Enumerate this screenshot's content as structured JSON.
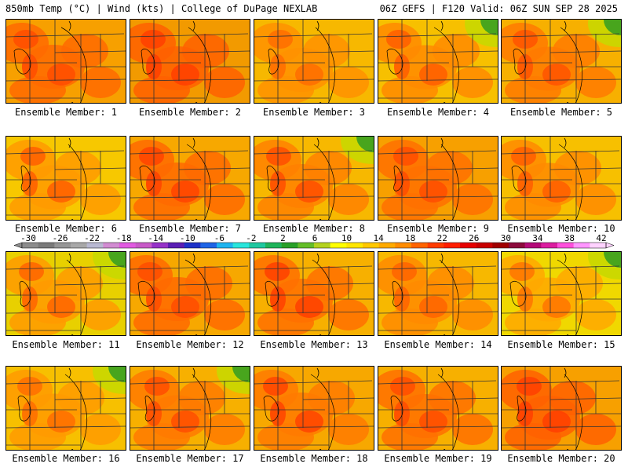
{
  "header": {
    "left": "850mb Temp (°C) | Wind (kts) | College of DuPage NEXLAB",
    "right": "06Z GEFS | F120 Valid: 06Z SUN SEP 28 2025"
  },
  "panels": [
    {
      "caption": "Ensemble Member: 1"
    },
    {
      "caption": "Ensemble Member: 2"
    },
    {
      "caption": "Ensemble Member: 3"
    },
    {
      "caption": "Ensemble Member: 4"
    },
    {
      "caption": "Ensemble Member: 5"
    },
    {
      "caption": "Ensemble Member: 6"
    },
    {
      "caption": "Ensemble Member: 7"
    },
    {
      "caption": "Ensemble Member: 8"
    },
    {
      "caption": "Ensemble Member: 9"
    },
    {
      "caption": "Ensemble Member: 10"
    },
    {
      "caption": "Ensemble Member: 11"
    },
    {
      "caption": "Ensemble Member: 12"
    },
    {
      "caption": "Ensemble Member: 13"
    },
    {
      "caption": "Ensemble Member: 14"
    },
    {
      "caption": "Ensemble Member: 15"
    },
    {
      "caption": "Ensemble Member: 16"
    },
    {
      "caption": "Ensemble Member: 17"
    },
    {
      "caption": "Ensemble Member: 18"
    },
    {
      "caption": "Ensemble Member: 19"
    },
    {
      "caption": "Ensemble Member: 20"
    }
  ],
  "colorbar": {
    "labels": [
      "-30",
      "-26",
      "-22",
      "-18",
      "-14",
      "-10",
      "-6",
      "-2",
      "2",
      "6",
      "10",
      "14",
      "18",
      "22",
      "26",
      "30",
      "34",
      "38",
      "42"
    ],
    "colors": [
      "#8c8c8c",
      "#7a7a7a",
      "#969696",
      "#a8a8a8",
      "#b9b9d2",
      "#d28cd2",
      "#e15ae1",
      "#c85ac8",
      "#9632c8",
      "#5a1eb4",
      "#1e32c8",
      "#1e64e6",
      "#1eb4f0",
      "#28e6dc",
      "#1ec8a0",
      "#1eb45a",
      "#28a028",
      "#64be28",
      "#b4d21e",
      "#ffff00",
      "#ffe600",
      "#ffc800",
      "#ffaa00",
      "#ff8c00",
      "#ff6400",
      "#ff3c00",
      "#ff1e00",
      "#e60000",
      "#c80000",
      "#a00000",
      "#8c0a3c",
      "#b40a78",
      "#dc1ea0",
      "#ff50dc",
      "#ff96ff",
      "#ffd2ff"
    ]
  }
}
